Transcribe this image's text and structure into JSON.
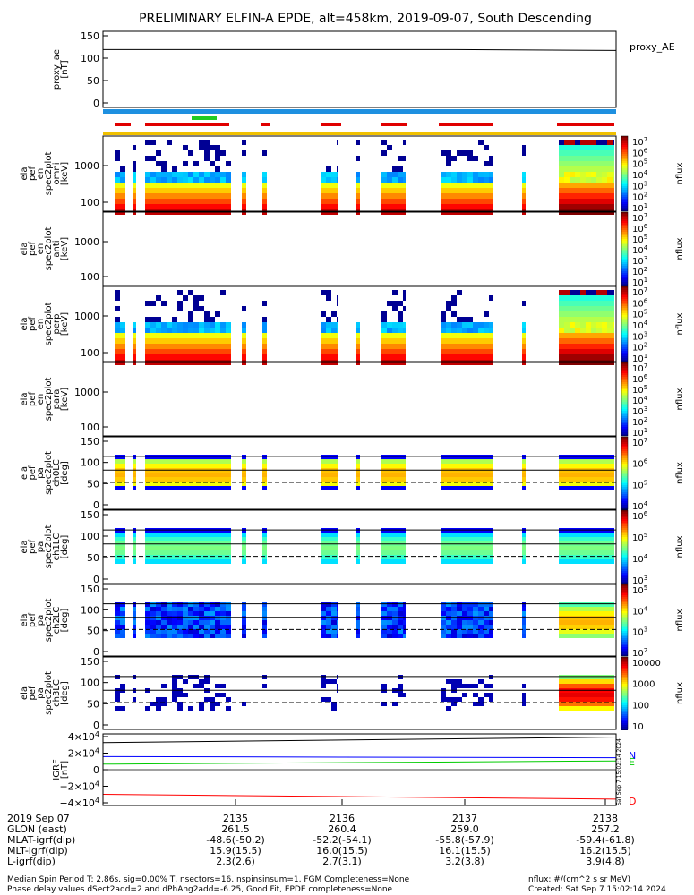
{
  "title": "PRELIMINARY ELFIN-A EPDE, alt=458km, 2019-09-07, South Descending",
  "chart_data": {
    "type": "heatmap",
    "panels": [
      {
        "id": "proxy_ae",
        "ylabel": [
          "proxy_ae",
          "[nT]"
        ],
        "yticks": [
          "150",
          "100",
          "50",
          "0"
        ],
        "legend": "proxy_AE",
        "values": [
          115,
          115,
          115,
          113
        ]
      },
      {
        "id": "en_omni",
        "ylabel": [
          "ela",
          "pef",
          "en",
          "spec2plot",
          "omni",
          "[keV]"
        ],
        "yticks": [
          "1000",
          "100"
        ],
        "cbar_ticks": [
          "10^7",
          "10^6",
          "10^5",
          "10^4",
          "10^3",
          "10^2",
          "10^1"
        ],
        "cbar_label": "nflux"
      },
      {
        "id": "en_anti",
        "ylabel": [
          "ela",
          "pef",
          "en",
          "spec2plot",
          "anti",
          "[keV]"
        ],
        "yticks": [
          "1000",
          "100"
        ],
        "cbar_ticks": [
          "10^7",
          "10^6",
          "10^5",
          "10^4",
          "10^3",
          "10^2",
          "10^1"
        ],
        "cbar_label": "nflux"
      },
      {
        "id": "en_perp",
        "ylabel": [
          "ela",
          "pef",
          "en",
          "spec2plot",
          "perp",
          "[keV]"
        ],
        "yticks": [
          "1000",
          "100"
        ],
        "cbar_ticks": [
          "10^7",
          "10^6",
          "10^5",
          "10^4",
          "10^3",
          "10^2",
          "10^1"
        ],
        "cbar_label": "nflux"
      },
      {
        "id": "en_para",
        "ylabel": [
          "ela",
          "pef",
          "en",
          "spec2plot",
          "para",
          "[keV]"
        ],
        "yticks": [
          "1000",
          "100"
        ],
        "cbar_ticks": [
          "10^7",
          "10^6",
          "10^5",
          "10^4",
          "10^3",
          "10^2",
          "10^1"
        ],
        "cbar_label": "nflux"
      },
      {
        "id": "pa_ch0",
        "ylabel": [
          "ela",
          "pef",
          "pa",
          "spec2plot",
          "ch0LC",
          "[deg]"
        ],
        "yticks": [
          "150",
          "100",
          "50",
          "0"
        ],
        "cbar_ticks": [
          "10^7",
          "10^6",
          "10^5",
          "10^4"
        ],
        "cbar_label": "nflux"
      },
      {
        "id": "pa_ch1",
        "ylabel": [
          "ela",
          "pef",
          "pa",
          "spec2plot",
          "ch1LC",
          "[deg]"
        ],
        "yticks": [
          "150",
          "100",
          "50",
          "0"
        ],
        "cbar_ticks": [
          "10^6",
          "10^5",
          "10^4",
          "10^3"
        ],
        "cbar_label": "nflux"
      },
      {
        "id": "pa_ch2",
        "ylabel": [
          "ela",
          "pef",
          "pa",
          "spec2plot",
          "ch2LC",
          "[deg]"
        ],
        "yticks": [
          "150",
          "100",
          "50",
          "0"
        ],
        "cbar_ticks": [
          "10^5",
          "10^4",
          "10^3",
          "10^2"
        ],
        "cbar_label": "nflux"
      },
      {
        "id": "pa_ch3",
        "ylabel": [
          "ela",
          "pef",
          "pa",
          "spec2plot",
          "ch3LC",
          "[deg]"
        ],
        "yticks": [
          "150",
          "100",
          "50",
          "0"
        ],
        "cbar_ticks": [
          "10000",
          "1000",
          "100",
          "10"
        ],
        "cbar_label": "nflux"
      },
      {
        "id": "igrf",
        "ylabel": [
          "IGRF",
          "[nT]"
        ],
        "yticks": [
          "4×10^4",
          "2×10^4",
          "0",
          "−2×10^4",
          "−4×10^4"
        ],
        "legend": [
          "N",
          "E",
          "D"
        ],
        "series": [
          {
            "name": "N",
            "values": [
              16500,
              15000
            ]
          },
          {
            "name": "E",
            "values": [
              7000,
              11000
            ]
          },
          {
            "name": "D",
            "values": [
              -31000,
              -37000
            ]
          },
          {
            "name": "",
            "values": [
              34000,
              41000
            ]
          }
        ]
      }
    ],
    "x_ticks": [
      "2135",
      "2136",
      "2137",
      "2138"
    ],
    "side_stamp": "Sat Sep  7 15:02:14 2024"
  },
  "footer_rows": [
    {
      "label": "2019 Sep 07",
      "values": [
        "2135",
        "2136",
        "2137",
        "2138"
      ]
    },
    {
      "label": "GLON (east)",
      "values": [
        "261.5",
        "260.4",
        "259.0",
        "257.2"
      ]
    },
    {
      "label": "MLAT-igrf(dip)",
      "values": [
        "-48.6(-50.2)",
        "-52.2(-54.1)",
        "-55.8(-57.9)",
        "-59.4(-61.8)"
      ]
    },
    {
      "label": "MLT-igrf(dip)",
      "values": [
        "15.9(15.5)",
        "16.0(15.5)",
        "16.1(15.5)",
        "16.2(15.5)"
      ]
    },
    {
      "label": "L-igrf(dip)",
      "values": [
        "2.3(2.6)",
        "2.7(3.1)",
        "3.2(3.8)",
        "3.9(4.8)"
      ]
    }
  ],
  "notes": {
    "line1": "Median Spin Period T: 2.86s, sig=0.00% T, nsectors=16, nspinsinsum=1, FGM Completeness=None",
    "line2": "Phase delay values dSect2add=2 and dPhAng2add=-6.25, Good Fit, EPDE completeness=None",
    "units": "nflux: #/(cm^2 s sr MeV)",
    "created": "Created: Sat Sep  7 15:02:14 2024"
  }
}
